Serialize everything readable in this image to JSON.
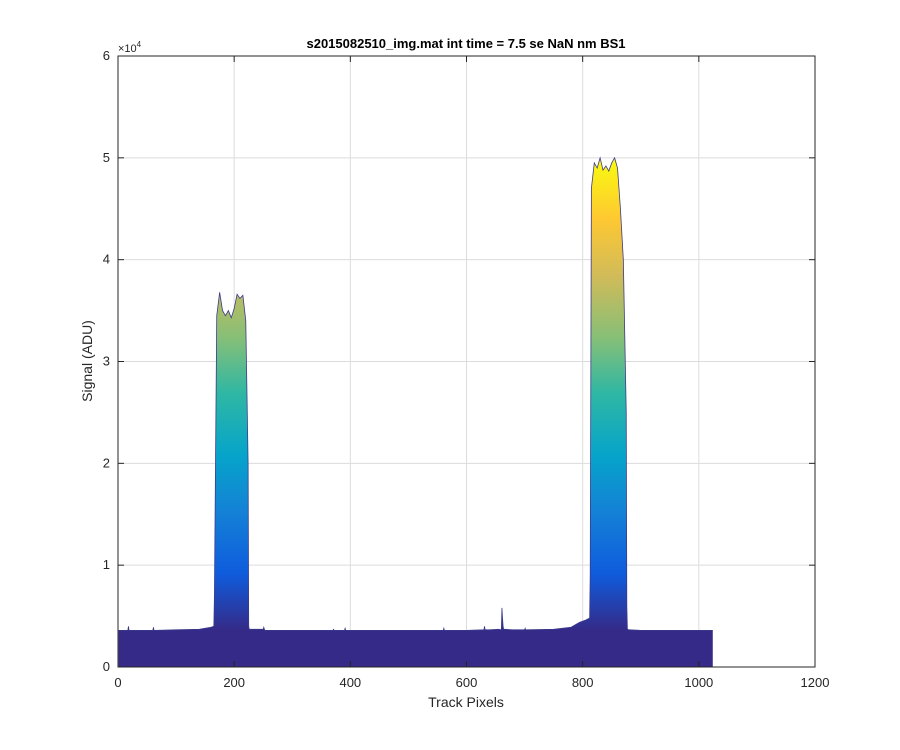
{
  "chart_data": {
    "type": "area",
    "title": "s2015082510_img.mat int time = 7.5 se  NaN nm BS1",
    "xlabel": "Track Pixels",
    "ylabel": "Signal (ADU)",
    "xlim": [
      0,
      1200
    ],
    "ylim": [
      0,
      60000
    ],
    "y_exponent_label": "×10",
    "y_exponent_power": "4",
    "grid": true,
    "colormap": "parula",
    "x_ticks": [
      0,
      200,
      400,
      600,
      800,
      1000,
      1200
    ],
    "x_tick_labels": [
      "0",
      "200",
      "400",
      "600",
      "800",
      "1000",
      "1200"
    ],
    "y_ticks": [
      0,
      10000,
      20000,
      30000,
      40000,
      50000,
      60000
    ],
    "y_tick_labels": [
      "0",
      "1",
      "2",
      "3",
      "4",
      "5",
      "6"
    ],
    "series": [
      {
        "x": [
          1,
          17,
          18,
          19,
          20,
          60,
          61,
          62,
          63,
          100,
          140,
          160,
          165,
          166,
          170,
          175,
          180,
          185,
          190,
          195,
          200,
          205,
          210,
          215,
          220,
          224,
          225,
          226,
          230,
          250,
          251,
          252,
          253,
          300,
          370,
          371,
          372,
          390,
          391,
          392,
          400,
          500,
          560,
          561,
          562,
          600,
          630,
          631,
          632,
          640,
          655,
          660,
          661,
          662,
          663,
          664,
          666,
          680,
          700,
          701,
          702,
          750,
          780,
          795,
          805,
          812,
          813,
          815,
          820,
          825,
          830,
          835,
          840,
          845,
          850,
          855,
          860,
          865,
          870,
          875,
          876,
          877,
          880,
          900,
          1000,
          1024
        ],
        "y": [
          3600,
          3600,
          4000,
          3600,
          3600,
          3600,
          3900,
          3600,
          3600,
          3650,
          3700,
          3900,
          4000,
          7000,
          34500,
          36800,
          35000,
          34500,
          35000,
          34300,
          35200,
          36600,
          36200,
          36500,
          34000,
          20000,
          4000,
          3700,
          3700,
          3700,
          3900,
          3700,
          3600,
          3600,
          3600,
          3700,
          3600,
          3600,
          3800,
          3600,
          3600,
          3600,
          3600,
          3800,
          3600,
          3600,
          3650,
          4000,
          3650,
          3650,
          3700,
          3650,
          5800,
          4800,
          4000,
          3700,
          3700,
          3650,
          3650,
          3800,
          3650,
          3700,
          3900,
          4400,
          4600,
          4800,
          9000,
          47000,
          49500,
          49000,
          50000,
          48800,
          49200,
          48700,
          49500,
          50000,
          49000,
          45000,
          40000,
          25000,
          6000,
          3700,
          3650,
          3600,
          3600,
          3600
        ]
      }
    ]
  }
}
